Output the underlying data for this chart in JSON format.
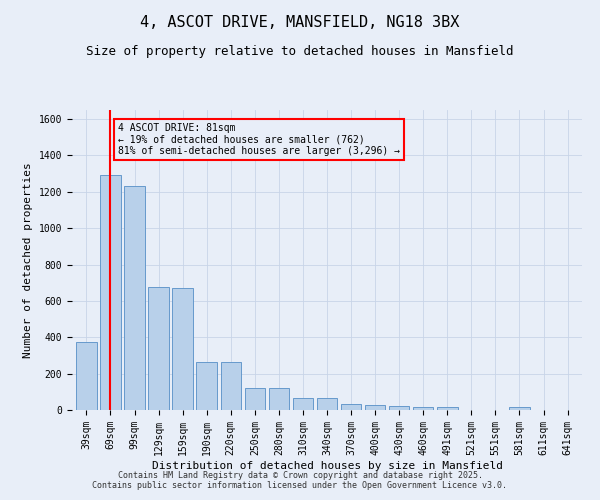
{
  "title": "4, ASCOT DRIVE, MANSFIELD, NG18 3BX",
  "subtitle": "Size of property relative to detached houses in Mansfield",
  "xlabel": "Distribution of detached houses by size in Mansfield",
  "ylabel": "Number of detached properties",
  "categories": [
    "39sqm",
    "69sqm",
    "99sqm",
    "129sqm",
    "159sqm",
    "190sqm",
    "220sqm",
    "250sqm",
    "280sqm",
    "310sqm",
    "340sqm",
    "370sqm",
    "400sqm",
    "430sqm",
    "460sqm",
    "491sqm",
    "521sqm",
    "551sqm",
    "581sqm",
    "611sqm",
    "641sqm"
  ],
  "values": [
    375,
    1290,
    1230,
    675,
    670,
    265,
    265,
    120,
    120,
    65,
    65,
    35,
    30,
    20,
    15,
    15,
    0,
    0,
    15,
    0,
    0
  ],
  "bar_color": "#b8d0ea",
  "bar_edge_color": "#6699cc",
  "grid_color": "#c8d4e8",
  "background_color": "#e8eef8",
  "vline_x": 1,
  "vline_color": "red",
  "annotation_text": "4 ASCOT DRIVE: 81sqm\n← 19% of detached houses are smaller (762)\n81% of semi-detached houses are larger (3,296) →",
  "annotation_box_color": "red",
  "ylim": [
    0,
    1650
  ],
  "yticks": [
    0,
    200,
    400,
    600,
    800,
    1000,
    1200,
    1400,
    1600
  ],
  "footer": "Contains HM Land Registry data © Crown copyright and database right 2025.\nContains public sector information licensed under the Open Government Licence v3.0.",
  "title_fontsize": 11,
  "subtitle_fontsize": 9,
  "axis_label_fontsize": 8,
  "tick_fontsize": 7,
  "footer_fontsize": 6
}
